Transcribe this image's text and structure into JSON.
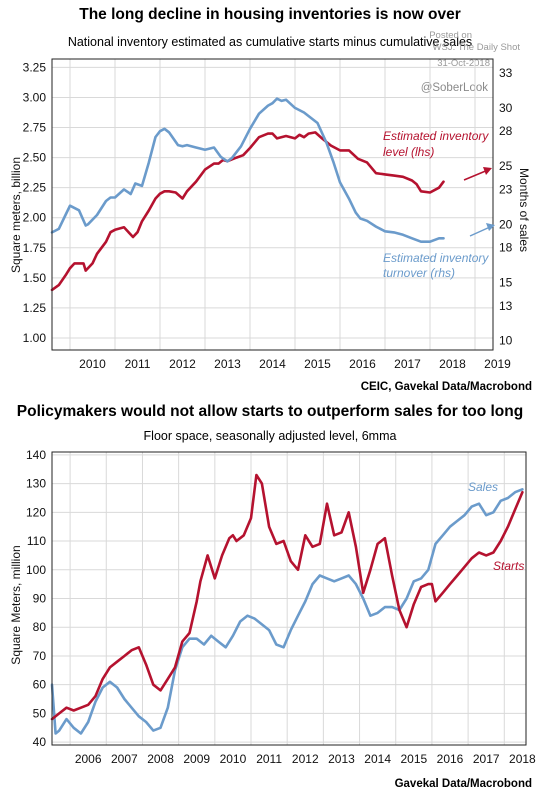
{
  "colors": {
    "red": "#b5122f",
    "blue": "#6b9bcb",
    "grid": "#d9d9d9"
  },
  "watermark": {
    "line1": "Posted on",
    "line2": "WSJ: The Daily Shot",
    "line3": "31-Oct-2018",
    "handle": "@SoberLook"
  },
  "chart_data": [
    {
      "type": "line",
      "title": "The long decline in housing inventories is now over",
      "subtitle": "National inventory estimated as cumulative starts minus cumulative sales",
      "ylabel": "Square meters, billion",
      "y2label": "Months of sales",
      "source": "CEIC, Gavekal Data/Macrobond",
      "xlim": [
        2009.6,
        2019.4
      ],
      "ylim": [
        0.9,
        3.32
      ],
      "y2lim": [
        9.2,
        34.2
      ],
      "xticks": [
        "2010",
        "2011",
        "2012",
        "2013",
        "2014",
        "2015",
        "2016",
        "2017",
        "2018",
        "2019"
      ],
      "yticks": [
        "1.00",
        "1.25",
        "1.50",
        "1.75",
        "2.00",
        "2.25",
        "2.50",
        "2.75",
        "3.00",
        "3.25"
      ],
      "y2ticks": [
        "10",
        "13",
        "15",
        "18",
        "20",
        "23",
        "25",
        "28",
        "30",
        "33"
      ],
      "annotations": [
        {
          "text1": "Estimated inventory",
          "text2": "level (lhs)",
          "color": "red"
        },
        {
          "text1": "Estimated inventory",
          "text2": "turnover (rhs)",
          "color": "blue"
        }
      ],
      "series": [
        {
          "name": "Estimated inventory level (lhs)",
          "axis": "left",
          "color": "red",
          "x": [
            2009.6,
            2009.75,
            2009.9,
            2010.0,
            2010.1,
            2010.2,
            2010.3,
            2010.35,
            2010.5,
            2010.6,
            2010.8,
            2010.9,
            2011.0,
            2011.2,
            2011.4,
            2011.5,
            2011.6,
            2011.75,
            2011.9,
            2012.0,
            2012.1,
            2012.2,
            2012.35,
            2012.5,
            2012.6,
            2012.8,
            2013.0,
            2013.2,
            2013.3,
            2013.4,
            2013.5,
            2013.7,
            2013.85,
            2014.0,
            2014.2,
            2014.4,
            2014.5,
            2014.6,
            2014.8,
            2015.0,
            2015.1,
            2015.2,
            2015.3,
            2015.45,
            2015.6,
            2015.8,
            2016.0,
            2016.2,
            2016.4,
            2016.6,
            2016.8,
            2017.0,
            2017.2,
            2017.4,
            2017.6,
            2017.7,
            2017.8,
            2018.0,
            2018.2,
            2018.3
          ],
          "y": [
            1.4,
            1.44,
            1.52,
            1.58,
            1.62,
            1.62,
            1.62,
            1.56,
            1.62,
            1.7,
            1.8,
            1.88,
            1.9,
            1.92,
            1.84,
            1.88,
            1.97,
            2.06,
            2.16,
            2.2,
            2.22,
            2.22,
            2.21,
            2.16,
            2.22,
            2.3,
            2.4,
            2.45,
            2.45,
            2.48,
            2.47,
            2.5,
            2.52,
            2.58,
            2.67,
            2.7,
            2.7,
            2.66,
            2.68,
            2.66,
            2.69,
            2.67,
            2.7,
            2.71,
            2.66,
            2.6,
            2.56,
            2.56,
            2.49,
            2.46,
            2.37,
            2.36,
            2.35,
            2.34,
            2.31,
            2.28,
            2.22,
            2.21,
            2.25,
            2.3
          ]
        },
        {
          "name": "Estimated inventory turnover (rhs)",
          "axis": "right",
          "color": "blue",
          "x": [
            2009.6,
            2009.75,
            2009.9,
            2010.0,
            2010.2,
            2010.35,
            2010.4,
            2010.6,
            2010.8,
            2010.9,
            2011.0,
            2011.2,
            2011.35,
            2011.45,
            2011.6,
            2011.75,
            2011.9,
            2012.0,
            2012.1,
            2012.2,
            2012.4,
            2012.5,
            2012.6,
            2012.8,
            2013.0,
            2013.2,
            2013.35,
            2013.5,
            2013.6,
            2013.8,
            2014.0,
            2014.2,
            2014.4,
            2014.5,
            2014.6,
            2014.7,
            2014.8,
            2015.0,
            2015.2,
            2015.3,
            2015.5,
            2015.7,
            2015.85,
            2016.0,
            2016.2,
            2016.35,
            2016.45,
            2016.6,
            2016.8,
            2017.0,
            2017.2,
            2017.4,
            2017.6,
            2017.8,
            2018.0,
            2018.2,
            2018.3
          ],
          "y": [
            19.3,
            19.6,
            20.8,
            21.6,
            21.2,
            19.9,
            20.0,
            20.8,
            22.0,
            22.3,
            22.3,
            23.0,
            22.6,
            23.5,
            23.3,
            25.3,
            27.5,
            28.0,
            28.2,
            27.9,
            26.8,
            26.7,
            26.8,
            26.6,
            26.4,
            26.6,
            25.8,
            25.4,
            25.7,
            26.7,
            28.2,
            29.5,
            30.2,
            30.4,
            30.8,
            30.6,
            30.7,
            30.0,
            29.6,
            29.3,
            28.7,
            27.0,
            25.4,
            23.6,
            22.2,
            21.0,
            20.5,
            20.3,
            19.8,
            19.4,
            19.3,
            19.1,
            18.8,
            18.5,
            18.5,
            18.8,
            18.8
          ]
        }
      ]
    },
    {
      "type": "line",
      "title": "Policymakers would not allow starts to outperform sales for too long",
      "subtitle": "Floor space, seasonally adjusted level, 6mma",
      "ylabel": "Square Meters, million",
      "source": "Gavekal Data/Macrobond",
      "xlim": [
        2005.5,
        2018.6
      ],
      "ylim": [
        39,
        141
      ],
      "xticks": [
        "2006",
        "2007",
        "2008",
        "2009",
        "2010",
        "2011",
        "2012",
        "2013",
        "2014",
        "2015",
        "2016",
        "2017",
        "2018"
      ],
      "yticks": [
        "40",
        "50",
        "60",
        "70",
        "80",
        "90",
        "100",
        "110",
        "120",
        "130",
        "140"
      ],
      "series": [
        {
          "name": "Sales",
          "color": "blue",
          "x": [
            2005.5,
            2005.6,
            2005.7,
            2005.9,
            2006.1,
            2006.3,
            2006.5,
            2006.7,
            2006.9,
            2007.1,
            2007.3,
            2007.5,
            2007.7,
            2007.9,
            2008.1,
            2008.3,
            2008.5,
            2008.7,
            2008.9,
            2009.1,
            2009.3,
            2009.5,
            2009.7,
            2009.9,
            2010.1,
            2010.3,
            2010.5,
            2010.7,
            2010.9,
            2011.1,
            2011.3,
            2011.5,
            2011.7,
            2011.9,
            2012.1,
            2012.3,
            2012.5,
            2012.7,
            2012.9,
            2013.1,
            2013.3,
            2013.5,
            2013.7,
            2013.9,
            2014.1,
            2014.3,
            2014.5,
            2014.7,
            2014.9,
            2015.1,
            2015.3,
            2015.5,
            2015.7,
            2015.9,
            2016.1,
            2016.3,
            2016.5,
            2016.7,
            2016.9,
            2017.1,
            2017.3,
            2017.5,
            2017.7,
            2017.9,
            2018.1,
            2018.3,
            2018.5
          ],
          "y": [
            60,
            43,
            44,
            48,
            45,
            43,
            47,
            54,
            59,
            61,
            59,
            55,
            52,
            49,
            47,
            44,
            45,
            52,
            65,
            73,
            76,
            76,
            74,
            77,
            75,
            73,
            77,
            82,
            84,
            83,
            81,
            79,
            74,
            73,
            79,
            84,
            89,
            95,
            98,
            97,
            96,
            97,
            98,
            95,
            90,
            84,
            85,
            87,
            87,
            86,
            90,
            96,
            97,
            100,
            109,
            112,
            115,
            117,
            119,
            122,
            123,
            119,
            120,
            124,
            125,
            127,
            128
          ]
        },
        {
          "name": "Starts",
          "color": "red",
          "x": [
            2005.5,
            2005.7,
            2005.9,
            2006.1,
            2006.3,
            2006.5,
            2006.7,
            2006.9,
            2007.1,
            2007.3,
            2007.5,
            2007.7,
            2007.9,
            2008.1,
            2008.3,
            2008.5,
            2008.7,
            2008.9,
            2009.1,
            2009.3,
            2009.5,
            2009.6,
            2009.8,
            2010.0,
            2010.2,
            2010.4,
            2010.5,
            2010.6,
            2010.8,
            2011.0,
            2011.15,
            2011.3,
            2011.5,
            2011.7,
            2011.9,
            2012.1,
            2012.3,
            2012.5,
            2012.7,
            2012.9,
            2013.1,
            2013.3,
            2013.5,
            2013.7,
            2013.9,
            2014.1,
            2014.3,
            2014.5,
            2014.7,
            2014.9,
            2015.1,
            2015.3,
            2015.5,
            2015.7,
            2015.9,
            2016.0,
            2016.1,
            2016.3,
            2016.5,
            2016.7,
            2016.9,
            2017.1,
            2017.3,
            2017.5,
            2017.7,
            2017.9,
            2018.1,
            2018.3,
            2018.5
          ],
          "y": [
            48,
            50,
            52,
            51,
            52,
            53,
            56,
            62,
            66,
            68,
            70,
            72,
            73,
            67,
            60,
            58,
            62,
            66,
            75,
            78,
            89,
            96,
            105,
            97,
            105,
            111,
            112,
            110,
            112,
            118,
            133,
            130,
            115,
            109,
            110,
            103,
            100,
            112,
            108,
            109,
            123,
            112,
            113,
            120,
            108,
            92,
            100,
            109,
            111,
            98,
            86,
            80,
            88,
            94,
            95,
            95,
            89,
            92,
            95,
            98,
            101,
            104,
            106,
            105,
            106,
            110,
            115,
            121,
            127
          ]
        }
      ]
    }
  ]
}
